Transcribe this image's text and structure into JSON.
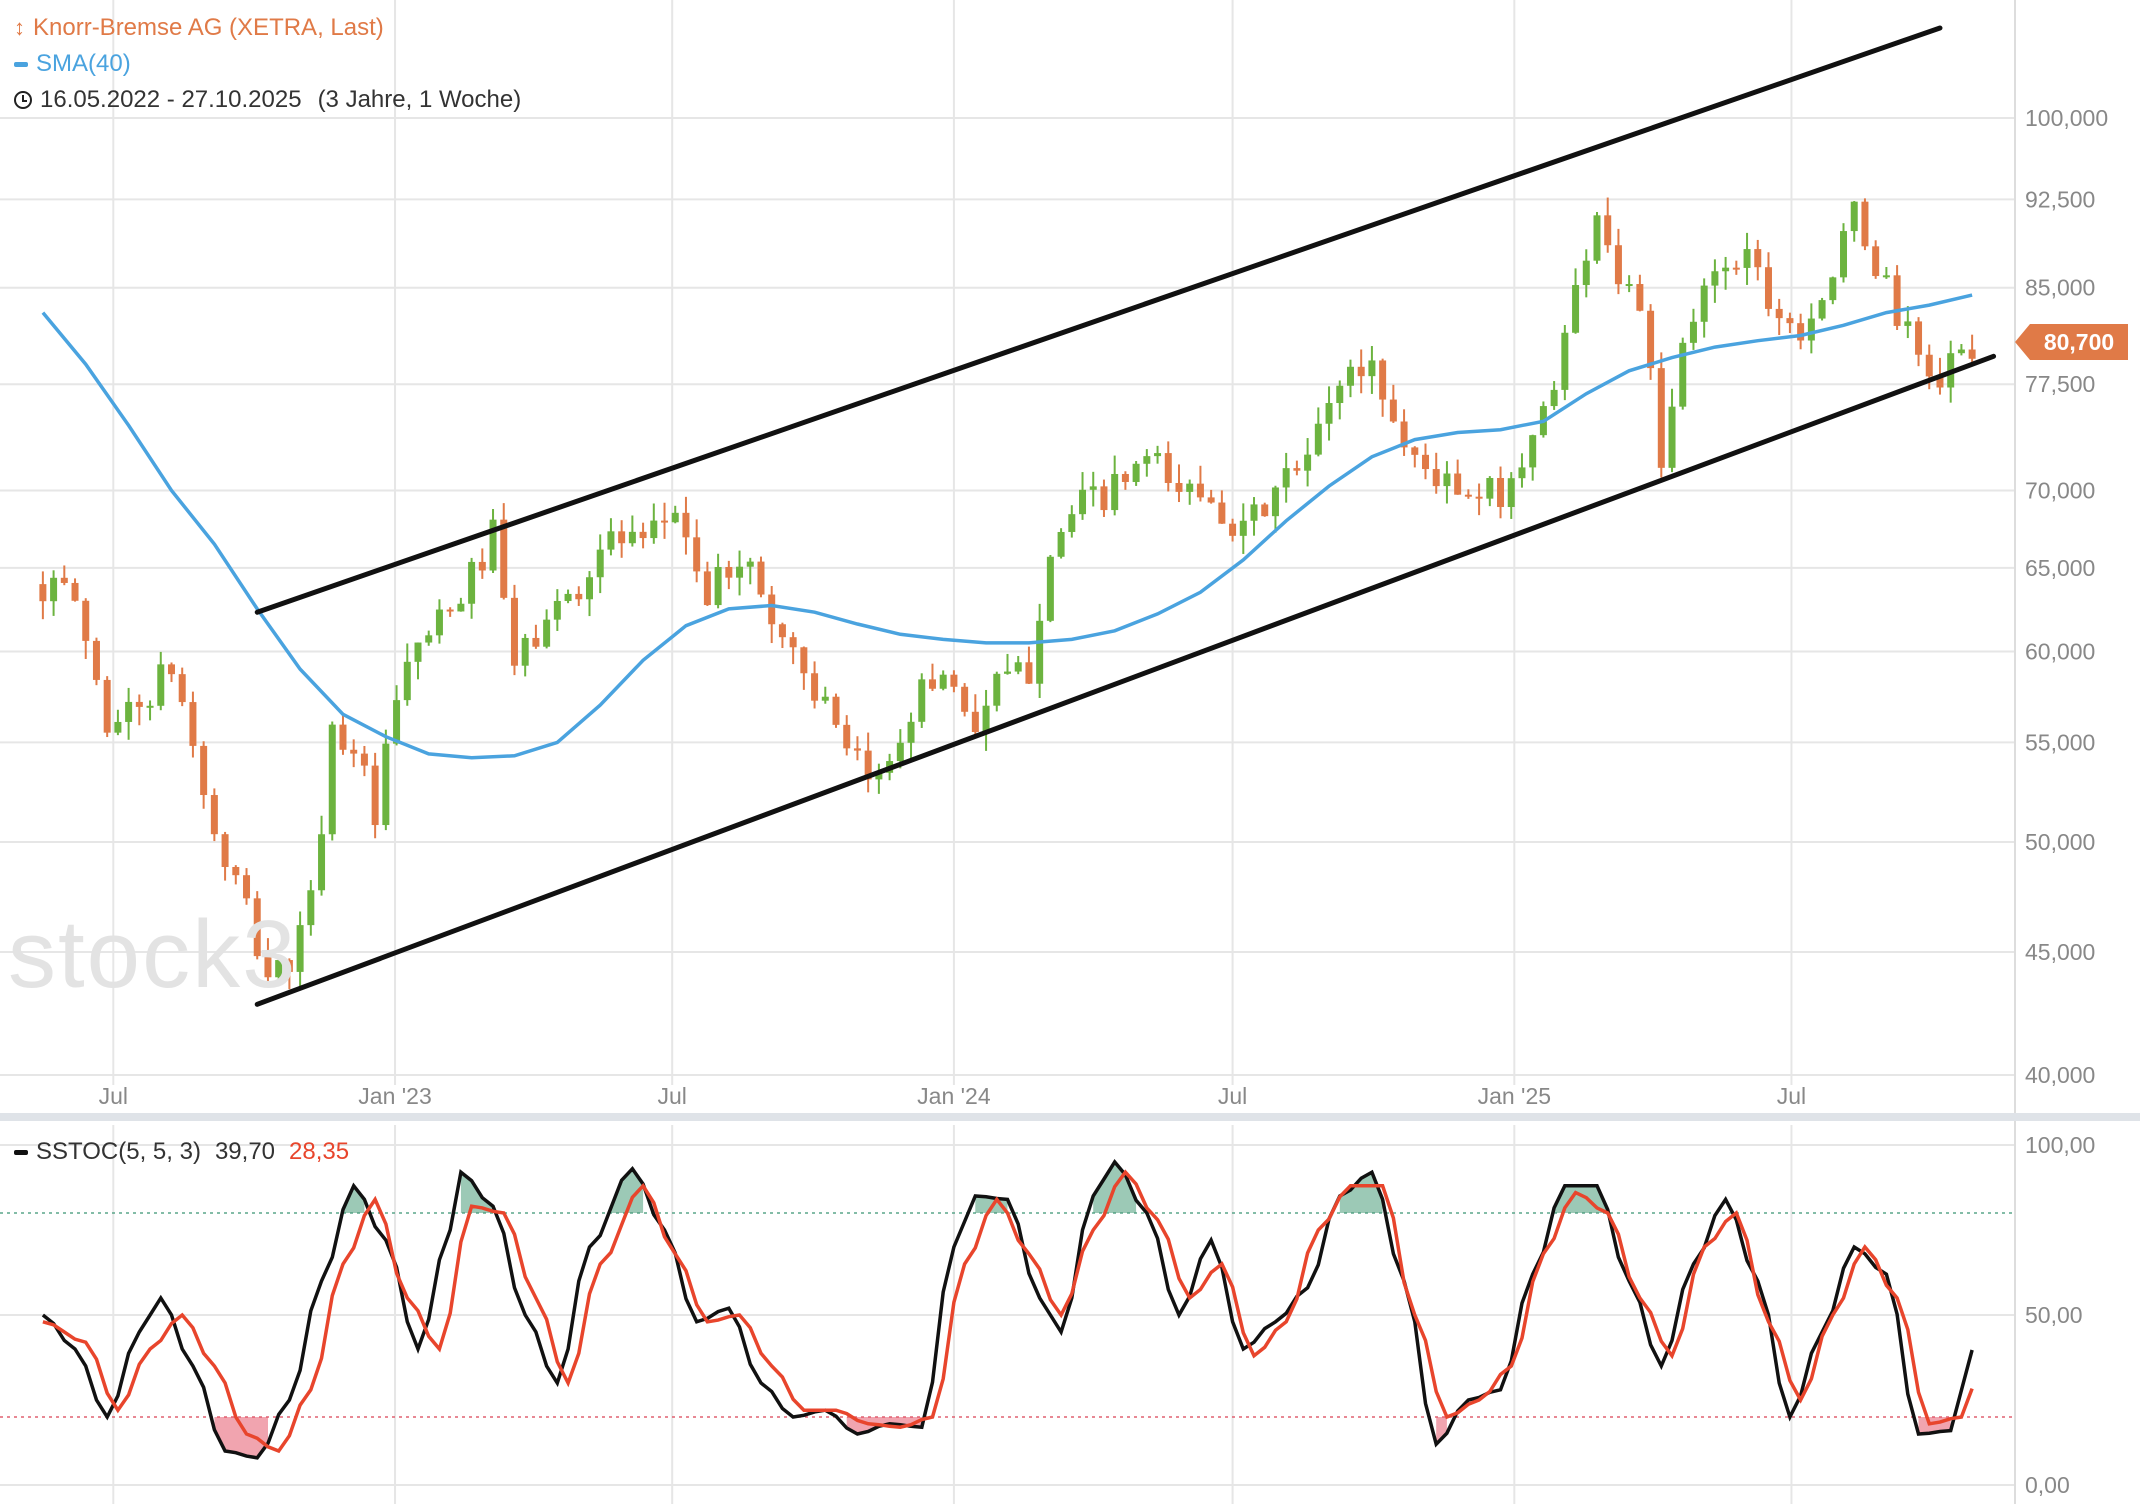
{
  "legend": {
    "instrument": "Knorr-Bremse AG (XETRA, Last)",
    "instrument_color": "#e07a47",
    "sma_label": "SMA(40)",
    "sma_color": "#4aa3df",
    "period_label": "16.05.2022 - 27.10.2025",
    "period_duration": "(3 Jahre, 1 Woche)"
  },
  "watermark": "stock3",
  "price_badge": {
    "value": "80,700",
    "color": "#e07a47"
  },
  "stoch_legend": {
    "label": "SSTOC(5, 5, 3)",
    "k_value": "39,70",
    "d_value": "28,35",
    "k_color": "#111111",
    "d_color": "#e8452c"
  },
  "colors": {
    "up": "#6cb33f",
    "down": "#e07a47",
    "sma": "#4aa3df",
    "stoch_k": "#111111",
    "stoch_d": "#e8452c",
    "overbought_fill": "#4a9d7a",
    "oversold_fill": "#e65a6e"
  },
  "chart_data": [
    {
      "type": "candlestick",
      "title": "Knorr-Bremse AG (XETRA, Last)",
      "ylim": [
        40,
        105
      ],
      "y_scale": "log",
      "y_ticks": [
        "40,000",
        "45,000",
        "50,000",
        "55,000",
        "60,000",
        "65,000",
        "70,000",
        "77,500",
        "85,000",
        "92,500",
        "100,000"
      ],
      "y_tick_values": [
        40,
        45,
        50,
        55,
        60,
        65,
        70,
        77.5,
        85,
        92.5,
        100
      ],
      "x_labels": [
        "Jul",
        "Jan '23",
        "Jul",
        "Jan '24",
        "Jul",
        "Jan '25",
        "Jul"
      ],
      "x_label_dates": [
        "2022-07-01",
        "2023-01-01",
        "2023-07-01",
        "2024-01-01",
        "2024-07-01",
        "2025-01-01",
        "2025-07-01"
      ],
      "x_range": [
        "2022-05-16",
        "2025-10-27"
      ],
      "close_anchors": [
        [
          "2022-05-16",
          64
        ],
        [
          "2022-06-06",
          63
        ],
        [
          "2022-06-27",
          56
        ],
        [
          "2022-07-18",
          57
        ],
        [
          "2022-08-08",
          59
        ],
        [
          "2022-08-22",
          55
        ],
        [
          "2022-09-05",
          50
        ],
        [
          "2022-09-19",
          48
        ],
        [
          "2022-10-10",
          44
        ],
        [
          "2022-10-24",
          44.5
        ],
        [
          "2022-11-07",
          47
        ],
        [
          "2022-11-21",
          55.5
        ],
        [
          "2022-12-05",
          55
        ],
        [
          "2022-12-19",
          51
        ],
        [
          "2023-01-02",
          57
        ],
        [
          "2023-01-16",
          60.5
        ],
        [
          "2023-02-06",
          62
        ],
        [
          "2023-03-06",
          67
        ],
        [
          "2023-03-20",
          59
        ],
        [
          "2023-04-03",
          61
        ],
        [
          "2023-05-01",
          64
        ],
        [
          "2023-05-22",
          67
        ],
        [
          "2023-06-12",
          66
        ],
        [
          "2023-07-03",
          69
        ],
        [
          "2023-07-24",
          63
        ],
        [
          "2023-08-14",
          66
        ],
        [
          "2023-09-04",
          62
        ],
        [
          "2023-10-02",
          58
        ],
        [
          "2023-10-23",
          54
        ],
        [
          "2023-11-13",
          53
        ],
        [
          "2023-12-04",
          57
        ],
        [
          "2023-12-25",
          59
        ],
        [
          "2024-01-15",
          56
        ],
        [
          "2024-01-29",
          58
        ],
        [
          "2024-02-19",
          59
        ],
        [
          "2024-03-04",
          66.5
        ],
        [
          "2024-03-25",
          69
        ],
        [
          "2024-04-15",
          70
        ],
        [
          "2024-05-06",
          72
        ],
        [
          "2024-05-27",
          70
        ],
        [
          "2024-06-17",
          70
        ],
        [
          "2024-07-08",
          67
        ],
        [
          "2024-07-29",
          70
        ],
        [
          "2024-08-19",
          72
        ],
        [
          "2024-09-09",
          78
        ],
        [
          "2024-09-30",
          79
        ],
        [
          "2024-10-21",
          73
        ],
        [
          "2024-11-11",
          71
        ],
        [
          "2024-12-02",
          69
        ],
        [
          "2024-12-23",
          70
        ],
        [
          "2025-01-13",
          73
        ],
        [
          "2025-02-03",
          81
        ],
        [
          "2025-02-24",
          92
        ],
        [
          "2025-03-10",
          86
        ],
        [
          "2025-03-24",
          84
        ],
        [
          "2025-04-07",
          71
        ],
        [
          "2025-04-21",
          80
        ],
        [
          "2025-05-12",
          87
        ],
        [
          "2025-06-02",
          88
        ],
        [
          "2025-06-23",
          83
        ],
        [
          "2025-07-07",
          82
        ],
        [
          "2025-07-28",
          86
        ],
        [
          "2025-08-11",
          91
        ],
        [
          "2025-09-01",
          85
        ],
        [
          "2025-09-22",
          79
        ],
        [
          "2025-10-06",
          78
        ],
        [
          "2025-10-27",
          80.7
        ]
      ],
      "series": [
        {
          "name": "SMA(40)",
          "points": [
            [
              "2022-05-16",
              83
            ],
            [
              "2022-06-13",
              79
            ],
            [
              "2022-07-11",
              74.5
            ],
            [
              "2022-08-08",
              70
            ],
            [
              "2022-09-05",
              66.5
            ],
            [
              "2022-10-03",
              62.5
            ],
            [
              "2022-10-31",
              59
            ],
            [
              "2022-11-28",
              56.5
            ],
            [
              "2022-12-26",
              55.3
            ],
            [
              "2023-01-23",
              54.4
            ],
            [
              "2023-02-20",
              54.2
            ],
            [
              "2023-03-20",
              54.3
            ],
            [
              "2023-04-17",
              55
            ],
            [
              "2023-05-15",
              57
            ],
            [
              "2023-06-12",
              59.5
            ],
            [
              "2023-07-10",
              61.5
            ],
            [
              "2023-08-07",
              62.5
            ],
            [
              "2023-09-04",
              62.7
            ],
            [
              "2023-10-02",
              62.3
            ],
            [
              "2023-10-30",
              61.6
            ],
            [
              "2023-11-27",
              61
            ],
            [
              "2023-12-25",
              60.7
            ],
            [
              "2024-01-22",
              60.5
            ],
            [
              "2024-02-19",
              60.5
            ],
            [
              "2024-03-18",
              60.7
            ],
            [
              "2024-04-15",
              61.2
            ],
            [
              "2024-05-13",
              62.2
            ],
            [
              "2024-06-10",
              63.5
            ],
            [
              "2024-07-08",
              65.5
            ],
            [
              "2024-08-05",
              68
            ],
            [
              "2024-09-02",
              70.3
            ],
            [
              "2024-09-30",
              72.3
            ],
            [
              "2024-10-28",
              73.5
            ],
            [
              "2024-11-25",
              74
            ],
            [
              "2024-12-23",
              74.2
            ],
            [
              "2025-01-20",
              74.8
            ],
            [
              "2025-02-17",
              76.8
            ],
            [
              "2025-03-17",
              78.5
            ],
            [
              "2025-04-14",
              79.5
            ],
            [
              "2025-05-12",
              80.3
            ],
            [
              "2025-06-09",
              80.8
            ],
            [
              "2025-07-07",
              81.2
            ],
            [
              "2025-08-04",
              82
            ],
            [
              "2025-09-01",
              83
            ],
            [
              "2025-09-29",
              83.6
            ],
            [
              "2025-10-27",
              84.4
            ]
          ]
        },
        {
          "name": "channel-upper",
          "points": [
            [
              "2022-10-03",
              62.3
            ],
            [
              "2025-10-06",
              109
            ]
          ]
        },
        {
          "name": "channel-lower",
          "points": [
            [
              "2022-10-03",
              42.8
            ],
            [
              "2025-11-10",
              79.6
            ]
          ]
        }
      ],
      "last_price": 80.7
    },
    {
      "type": "line",
      "title": "SSTOC(5, 5, 3)",
      "ylim": [
        0,
        100
      ],
      "y_ticks": [
        "0,00",
        "50,00",
        "100,00"
      ],
      "y_tick_values": [
        0,
        50,
        100
      ],
      "levels": [
        80,
        20
      ],
      "series": [
        {
          "name": "%K",
          "values": [
            [
              "2022-05-16",
              50
            ],
            [
              "2022-06-06",
              40
            ],
            [
              "2022-06-27",
              20
            ],
            [
              "2022-07-18",
              45
            ],
            [
              "2022-08-01",
              55
            ],
            [
              "2022-08-22",
              35
            ],
            [
              "2022-09-12",
              10
            ],
            [
              "2022-10-03",
              8
            ],
            [
              "2022-10-24",
              25
            ],
            [
              "2022-11-14",
              60
            ],
            [
              "2022-12-05",
              88
            ],
            [
              "2022-12-26",
              72
            ],
            [
              "2023-01-16",
              40
            ],
            [
              "2023-02-06",
              75
            ],
            [
              "2023-02-13",
              92
            ],
            [
              "2023-03-06",
              82
            ],
            [
              "2023-03-27",
              50
            ],
            [
              "2023-04-17",
              30
            ],
            [
              "2023-05-08",
              70
            ],
            [
              "2023-06-05",
              93
            ],
            [
              "2023-06-26",
              75
            ],
            [
              "2023-07-17",
              48
            ],
            [
              "2023-08-07",
              52
            ],
            [
              "2023-08-28",
              30
            ],
            [
              "2023-09-18",
              20
            ],
            [
              "2023-10-09",
              22
            ],
            [
              "2023-10-30",
              15
            ],
            [
              "2023-11-20",
              18
            ],
            [
              "2023-12-11",
              17
            ],
            [
              "2024-01-01",
              70
            ],
            [
              "2024-01-15",
              85
            ],
            [
              "2024-02-05",
              84
            ],
            [
              "2024-02-26",
              55
            ],
            [
              "2024-03-11",
              45
            ],
            [
              "2024-04-01",
              85
            ],
            [
              "2024-04-15",
              95
            ],
            [
              "2024-05-06",
              80
            ],
            [
              "2024-05-27",
              50
            ],
            [
              "2024-06-17",
              72
            ],
            [
              "2024-07-08",
              40
            ],
            [
              "2024-07-29",
              48
            ],
            [
              "2024-08-19",
              58
            ],
            [
              "2024-09-09",
              85
            ],
            [
              "2024-09-30",
              92
            ],
            [
              "2024-10-21",
              60
            ],
            [
              "2024-11-11",
              12
            ],
            [
              "2024-12-02",
              25
            ],
            [
              "2024-12-23",
              28
            ],
            [
              "2025-01-13",
              62
            ],
            [
              "2025-02-03",
              88
            ],
            [
              "2025-02-24",
              88
            ],
            [
              "2025-03-17",
              60
            ],
            [
              "2025-04-07",
              35
            ],
            [
              "2025-04-28",
              65
            ],
            [
              "2025-05-19",
              84
            ],
            [
              "2025-06-09",
              60
            ],
            [
              "2025-06-30",
              20
            ],
            [
              "2025-07-21",
              45
            ],
            [
              "2025-08-11",
              70
            ],
            [
              "2025-09-01",
              62
            ],
            [
              "2025-09-22",
              15
            ],
            [
              "2025-10-13",
              16
            ],
            [
              "2025-10-27",
              39.7
            ]
          ]
        },
        {
          "name": "%D",
          "values": [
            [
              "2022-05-16",
              48
            ],
            [
              "2022-06-13",
              42
            ],
            [
              "2022-07-04",
              22
            ],
            [
              "2022-07-25",
              40
            ],
            [
              "2022-08-15",
              50
            ],
            [
              "2022-09-05",
              35
            ],
            [
              "2022-09-26",
              15
            ],
            [
              "2022-10-17",
              10
            ],
            [
              "2022-11-07",
              28
            ],
            [
              "2022-11-28",
              65
            ],
            [
              "2022-12-19",
              84
            ],
            [
              "2023-01-09",
              55
            ],
            [
              "2023-01-30",
              40
            ],
            [
              "2023-02-20",
              82
            ],
            [
              "2023-03-13",
              80
            ],
            [
              "2023-04-03",
              55
            ],
            [
              "2023-04-24",
              30
            ],
            [
              "2023-05-15",
              65
            ],
            [
              "2023-06-12",
              88
            ],
            [
              "2023-07-03",
              68
            ],
            [
              "2023-07-24",
              48
            ],
            [
              "2023-08-14",
              50
            ],
            [
              "2023-09-04",
              35
            ],
            [
              "2023-09-25",
              22
            ],
            [
              "2023-10-16",
              22
            ],
            [
              "2023-11-06",
              18
            ],
            [
              "2023-11-27",
              17
            ],
            [
              "2023-12-18",
              20
            ],
            [
              "2024-01-08",
              65
            ],
            [
              "2024-01-29",
              84
            ],
            [
              "2024-02-19",
              68
            ],
            [
              "2024-03-11",
              50
            ],
            [
              "2024-04-01",
              75
            ],
            [
              "2024-04-22",
              92
            ],
            [
              "2024-05-13",
              78
            ],
            [
              "2024-06-03",
              55
            ],
            [
              "2024-06-24",
              65
            ],
            [
              "2024-07-15",
              38
            ],
            [
              "2024-08-05",
              48
            ],
            [
              "2024-08-26",
              75
            ],
            [
              "2024-09-16",
              88
            ],
            [
              "2024-10-07",
              88
            ],
            [
              "2024-10-28",
              50
            ],
            [
              "2024-11-18",
              20
            ],
            [
              "2024-12-09",
              25
            ],
            [
              "2024-12-30",
              35
            ],
            [
              "2025-01-20",
              68
            ],
            [
              "2025-02-10",
              86
            ],
            [
              "2025-03-03",
              80
            ],
            [
              "2025-03-24",
              55
            ],
            [
              "2025-04-14",
              38
            ],
            [
              "2025-05-05",
              70
            ],
            [
              "2025-05-26",
              80
            ],
            [
              "2025-06-16",
              48
            ],
            [
              "2025-07-07",
              25
            ],
            [
              "2025-07-28",
              50
            ],
            [
              "2025-08-18",
              70
            ],
            [
              "2025-09-08",
              55
            ],
            [
              "2025-09-29",
              18
            ],
            [
              "2025-10-20",
              20
            ],
            [
              "2025-10-27",
              28.35
            ]
          ]
        }
      ]
    }
  ]
}
